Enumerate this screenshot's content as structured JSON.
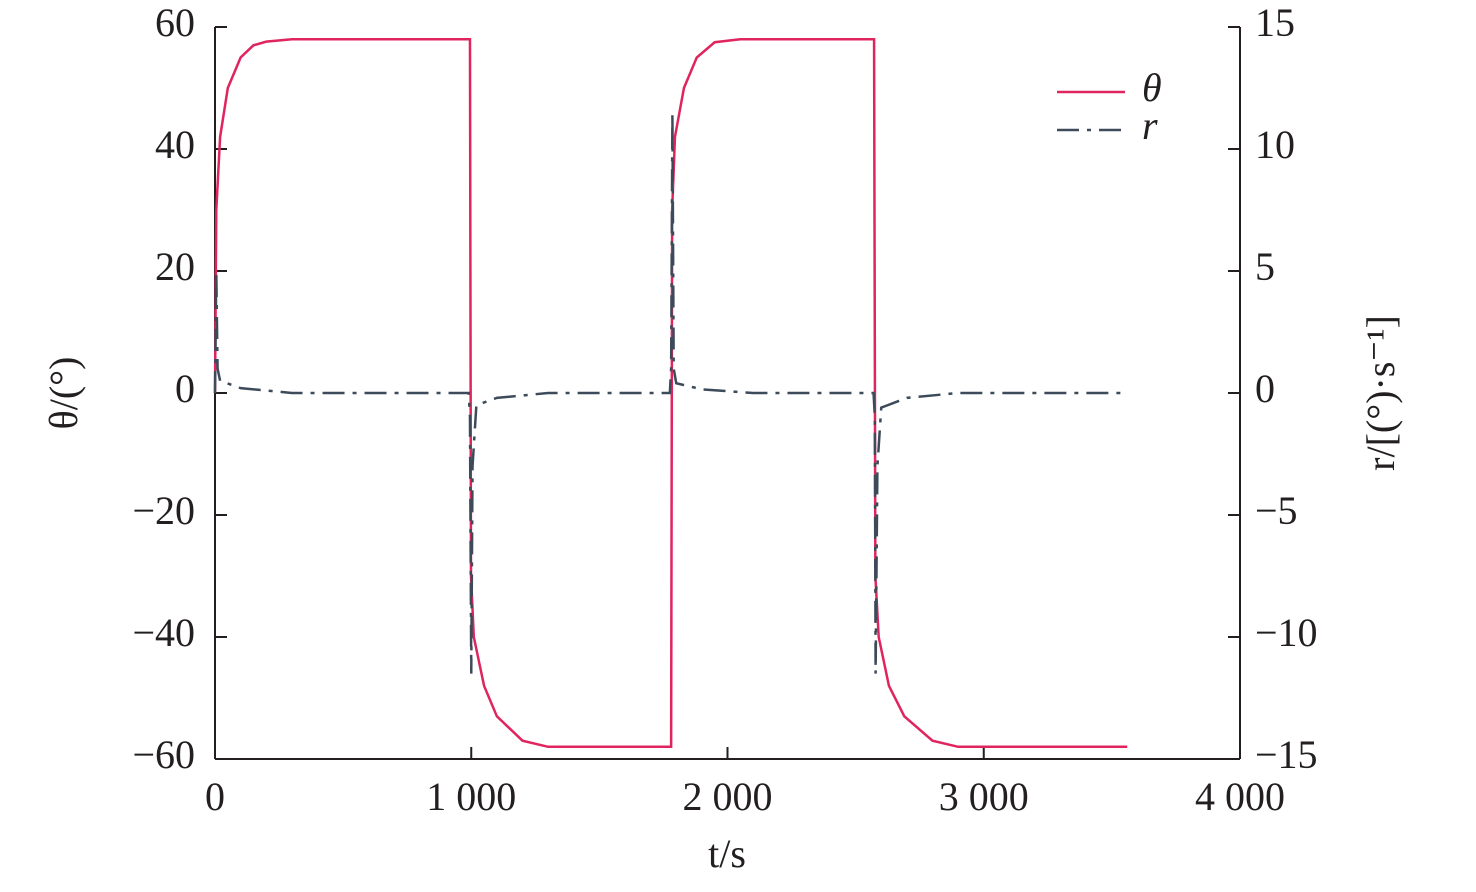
{
  "chart_data": {
    "type": "line",
    "xlabel": "t/s",
    "ylabel": "θ/(°)",
    "y2label": "r/[(°)·s⁻¹]",
    "xlim": [
      0,
      4000
    ],
    "xticks": [
      0,
      {
        "value": 1000,
        "label": "1 000"
      },
      {
        "value": 2000,
        "label": "2 000"
      },
      {
        "value": 3000,
        "label": "3 000"
      },
      {
        "value": 4000,
        "label": "4 000"
      }
    ],
    "ylim": [
      -60,
      60
    ],
    "yticks": [
      {
        "value": -60,
        "label": "−60"
      },
      {
        "value": -40,
        "label": "−40"
      },
      {
        "value": -20,
        "label": "−20"
      },
      0,
      20,
      40,
      60
    ],
    "y2lim": [
      -15,
      15
    ],
    "y2ticks": [
      {
        "value": -15,
        "label": "−15"
      },
      {
        "value": -10,
        "label": "−10"
      },
      {
        "value": -5,
        "label": "−5"
      },
      0,
      5,
      10,
      15
    ],
    "legend": "upper right",
    "series": [
      {
        "name": "θ",
        "color": "#e0245e",
        "dash": "solid",
        "x": [
          0,
          5,
          20,
          50,
          100,
          150,
          200,
          300,
          995,
          999,
          1010,
          1050,
          1100,
          1200,
          1300,
          1780,
          1784,
          1795,
          1830,
          1880,
          1950,
          2050,
          2572,
          2577,
          2590,
          2630,
          2690,
          2800,
          2900,
          3560
        ],
        "values": [
          0,
          30,
          42,
          50,
          55,
          57,
          57.6,
          58,
          58,
          -30,
          -40,
          -48,
          -53,
          -57,
          -58,
          -58,
          30,
          42,
          50,
          55,
          57.5,
          58,
          58,
          -30,
          -40,
          -48,
          -53,
          -57,
          -58,
          -58
        ]
      },
      {
        "name": "r",
        "color": "#3c4a5a",
        "dash": "dashdot",
        "x": [
          0,
          5,
          10,
          20,
          100,
          300,
          990,
          995,
          1000,
          1005,
          1020,
          1100,
          1300,
          1775,
          1780,
          1785,
          1790,
          1800,
          1900,
          2100,
          2570,
          2575,
          2578,
          2585,
          2600,
          2700,
          2900,
          3560
        ],
        "values": [
          0,
          5,
          1,
          0.5,
          0.2,
          0,
          0,
          -1,
          -11.5,
          -3,
          -0.5,
          -0.2,
          0,
          0,
          1,
          11.5,
          1,
          0.4,
          0.15,
          0,
          0,
          -1,
          -11.5,
          -3,
          -0.6,
          -0.2,
          0,
          0
        ],
        "axis": "y2"
      }
    ]
  }
}
